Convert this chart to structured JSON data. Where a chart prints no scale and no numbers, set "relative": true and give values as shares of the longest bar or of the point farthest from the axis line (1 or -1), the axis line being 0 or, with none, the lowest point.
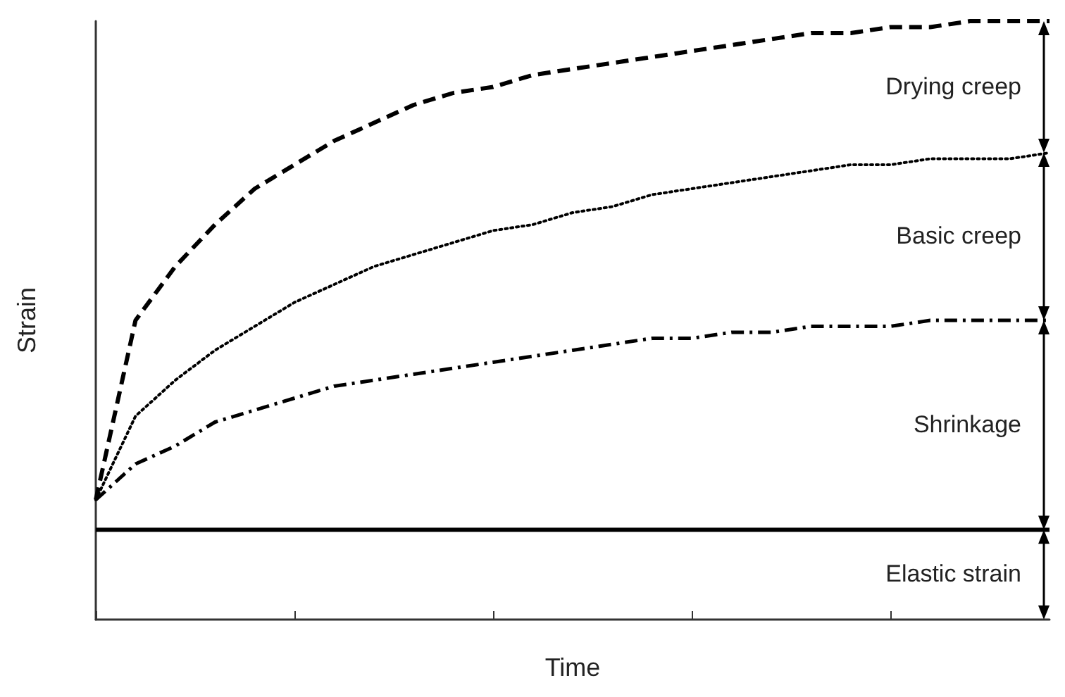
{
  "chart_data": {
    "type": "line",
    "relative": true,
    "xlabel": "Time",
    "ylabel": "Strain",
    "marker": "none",
    "categories": [
      null,
      null,
      null,
      null,
      null,
      null,
      null,
      null,
      null,
      null,
      null,
      null,
      null,
      null,
      null,
      null,
      null,
      null,
      null,
      null,
      null,
      null,
      null,
      null,
      null
    ],
    "series": [
      {
        "color": "#000000",
        "line_style": "solid",
        "values": [
          0.15,
          0.15,
          0.15,
          0.15,
          0.15,
          0.15,
          0.15,
          0.15,
          0.15,
          0.15,
          0.15,
          0.15,
          0.15,
          0.15,
          0.15,
          0.15,
          0.15,
          0.15,
          0.15,
          0.15,
          0.15,
          0.15,
          0.15,
          0.15,
          0.15
        ]
      },
      {
        "color": "#000000",
        "line_style": "dashdot",
        "values": [
          0.2,
          0.26,
          0.29,
          0.33,
          0.35,
          0.37,
          0.39,
          0.4,
          0.41,
          0.42,
          0.43,
          0.44,
          0.45,
          0.46,
          0.47,
          0.47,
          0.48,
          0.48,
          0.49,
          0.49,
          0.49,
          0.5,
          0.5,
          0.5,
          0.5
        ]
      },
      {
        "color": "#000000",
        "line_style": "dotted",
        "values": [
          0.2,
          0.34,
          0.4,
          0.45,
          0.49,
          0.53,
          0.56,
          0.59,
          0.61,
          0.63,
          0.65,
          0.66,
          0.68,
          0.69,
          0.71,
          0.72,
          0.73,
          0.74,
          0.75,
          0.76,
          0.76,
          0.77,
          0.77,
          0.77,
          0.78
        ]
      },
      {
        "color": "#000000",
        "line_style": "dashed",
        "values": [
          0.2,
          0.5,
          0.59,
          0.66,
          0.72,
          0.76,
          0.8,
          0.83,
          0.86,
          0.88,
          0.89,
          0.91,
          0.92,
          0.93,
          0.94,
          0.95,
          0.96,
          0.97,
          0.98,
          0.98,
          0.99,
          0.99,
          1.0,
          1.0,
          1.0
        ]
      }
    ],
    "annotations": [
      "Drying creep",
      "Basic creep",
      "Shrinkage",
      "Elastic strain"
    ]
  }
}
